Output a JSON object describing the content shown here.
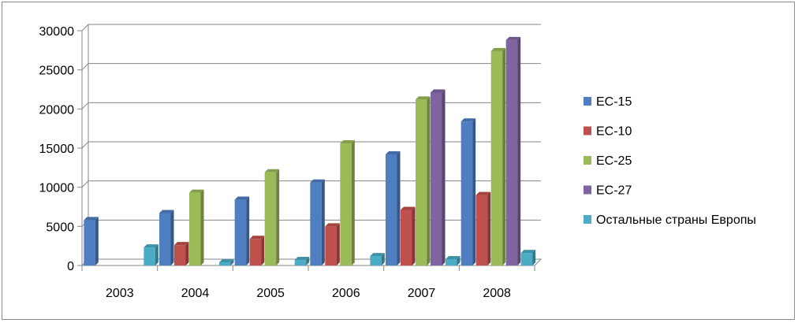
{
  "chart_data": {
    "type": "bar",
    "title": "",
    "xlabel": "",
    "ylabel": "",
    "categories": [
      "2003",
      "2004",
      "2005",
      "2006",
      "2007",
      "2008"
    ],
    "ylim": [
      0,
      30000
    ],
    "y_ticks": [
      "0",
      "5000",
      "10000",
      "15000",
      "20000",
      "25000",
      "30000"
    ],
    "grid": true,
    "legend_position": "right",
    "series": [
      {
        "name": "ЕС-15",
        "color": "#4f7ec1",
        "values": [
          5800,
          6700,
          8400,
          10600,
          14200,
          18400
        ]
      },
      {
        "name": "ЕС-10",
        "color": "#c0504d",
        "values": [
          null,
          2600,
          3400,
          5000,
          7100,
          9000
        ]
      },
      {
        "name": "ЕС-25",
        "color": "#9bbb59",
        "values": [
          null,
          9300,
          11900,
          15600,
          21200,
          27400
        ]
      },
      {
        "name": "ЕС-27",
        "color": "#8064a2",
        "values": [
          null,
          null,
          null,
          null,
          22100,
          28800
        ]
      },
      {
        "name": "Остальные страны Европы",
        "color": "#4bacc6",
        "values": [
          2300,
          400,
          700,
          1200,
          800,
          1600
        ]
      }
    ]
  }
}
